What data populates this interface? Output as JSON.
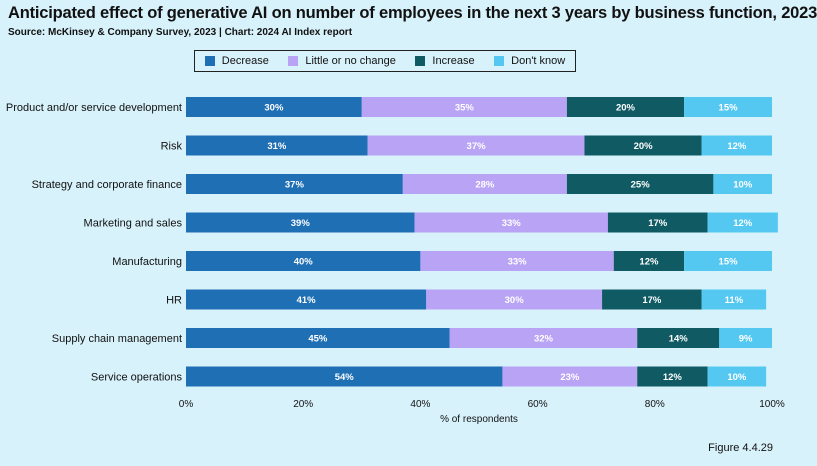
{
  "chart_data": {
    "type": "bar",
    "orientation": "horizontal",
    "stacked": true,
    "title": "Anticipated effect of generative AI on number of employees in the next 3 years by business function, 2023",
    "subtitle": "Source: McKinsey & Company Survey, 2023 | Chart: 2024 AI Index report",
    "xlabel": "% of respondents",
    "ylabel": "",
    "xlim": [
      0,
      100
    ],
    "xticks": [
      0,
      20,
      40,
      60,
      80,
      100
    ],
    "xtick_labels": [
      "0%",
      "20%",
      "40%",
      "60%",
      "80%",
      "100%"
    ],
    "legend_position": "top-center",
    "categories": [
      "Product and/or service development",
      "Risk",
      "Strategy and corporate finance",
      "Marketing and sales",
      "Manufacturing",
      "HR",
      "Supply chain management",
      "Service operations"
    ],
    "series": [
      {
        "name": "Decrease",
        "color": "#1f6fb5",
        "values": [
          30,
          31,
          37,
          39,
          40,
          41,
          45,
          54
        ],
        "labels": [
          "30%",
          "31%",
          "37%",
          "39%",
          "40%",
          "41%",
          "45%",
          "54%"
        ]
      },
      {
        "name": "Little or no change",
        "color": "#b9a3f5",
        "values": [
          35,
          37,
          28,
          33,
          33,
          30,
          32,
          23
        ],
        "labels": [
          "35%",
          "37%",
          "28%",
          "33%",
          "33%",
          "30%",
          "32%",
          "23%"
        ]
      },
      {
        "name": "Increase",
        "color": "#0f5a63",
        "values": [
          20,
          20,
          25,
          17,
          12,
          17,
          14,
          12
        ],
        "labels": [
          "20%",
          "20%",
          "25%",
          "17%",
          "12%",
          "17%",
          "14%",
          "12%"
        ]
      },
      {
        "name": "Don't know",
        "color": "#55c8f2",
        "values": [
          15,
          12,
          10,
          12,
          15,
          11,
          9,
          10
        ],
        "labels": [
          "15%",
          "12%",
          "10%",
          "12%",
          "15%",
          "11%",
          "9%",
          "10%"
        ]
      }
    ]
  },
  "figure_label": "Figure 4.4.29"
}
